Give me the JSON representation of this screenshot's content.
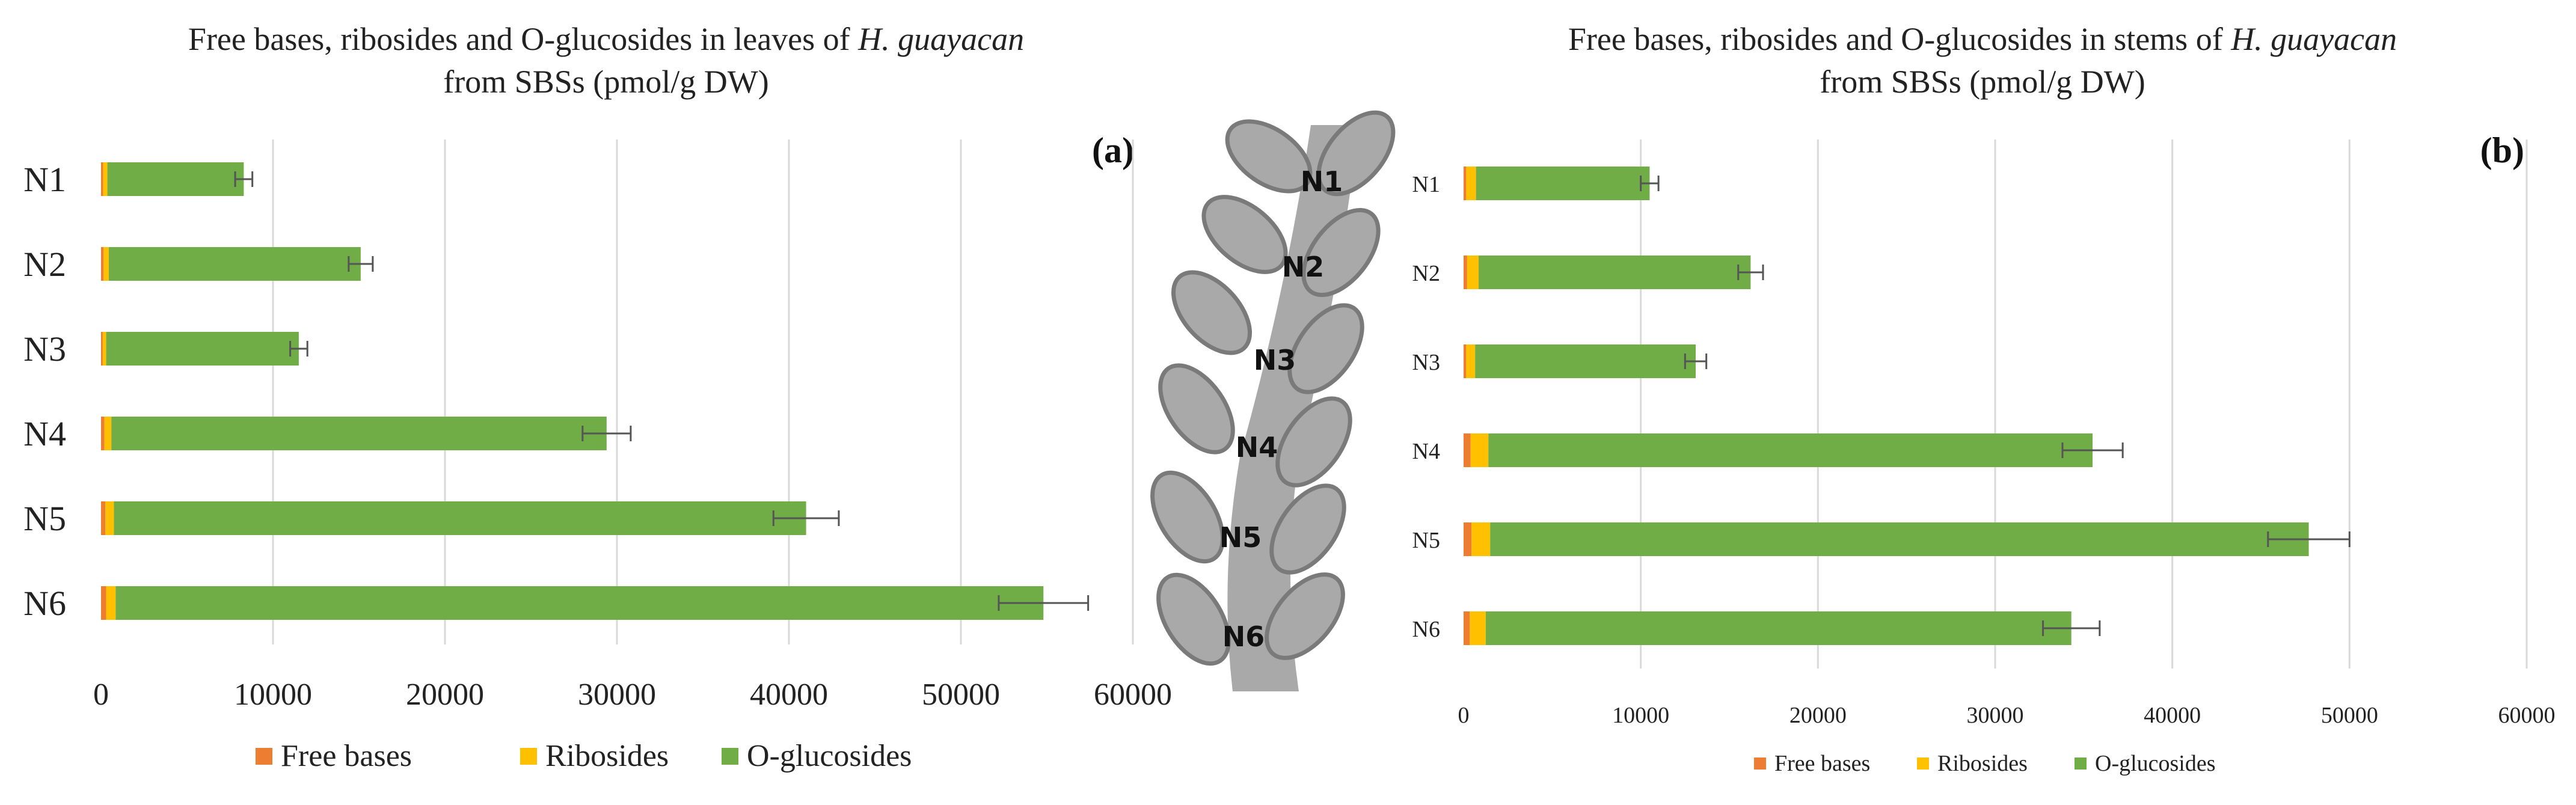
{
  "colors": {
    "free_bases": "#ED7D31",
    "ribosides": "#FFC000",
    "o_glucosides": "#70AD47",
    "error_bar": "#555555"
  },
  "chart_data": [
    {
      "id": "leaves",
      "type": "bar",
      "orientation": "horizontal",
      "stacked": true,
      "title": "Free bases, ribosides and O-glucosides in leaves of ",
      "title_italic": "H. guayacan",
      "title_line2": "from SBSs (pmol/g DW)",
      "panel_label": "(a)",
      "categories": [
        "N1",
        "N2",
        "N3",
        "N4",
        "N5",
        "N6"
      ],
      "series": [
        {
          "name": "Free bases",
          "values": [
            120,
            150,
            100,
            200,
            250,
            300
          ]
        },
        {
          "name": "Ribosides",
          "values": [
            250,
            300,
            200,
            400,
            500,
            550
          ]
        },
        {
          "name": "O-glucosides",
          "values": [
            7930,
            14650,
            11200,
            28800,
            40250,
            53950
          ]
        }
      ],
      "errors": [
        500,
        700,
        500,
        1400,
        1900,
        2600
      ],
      "xlim": [
        0,
        60000
      ],
      "xticks": [
        "0",
        "10000",
        "20000",
        "30000",
        "40000",
        "50000",
        "60000"
      ],
      "legend": [
        "Free bases",
        "Ribosides",
        "O-glucosides"
      ],
      "legend_position": "bottom",
      "grid": true
    },
    {
      "id": "stems",
      "type": "bar",
      "orientation": "horizontal",
      "stacked": true,
      "title": "Free bases, ribosides and O-glucosides in stems of ",
      "title_italic": "H. guayacan",
      "title_line2": "from SBSs (pmol/g DW)",
      "panel_label": "(b)",
      "categories": [
        "N1",
        "N2",
        "N3",
        "N4",
        "N5",
        "N6"
      ],
      "series": [
        {
          "name": "Free bases",
          "values": [
            150,
            200,
            150,
            400,
            450,
            350
          ]
        },
        {
          "name": "Ribosides",
          "values": [
            550,
            650,
            500,
            1000,
            1050,
            900
          ]
        },
        {
          "name": "O-glucosides",
          "values": [
            9800,
            15350,
            12450,
            34100,
            46200,
            33050
          ]
        }
      ],
      "errors": [
        500,
        700,
        600,
        1700,
        2300,
        1600
      ],
      "xlim": [
        0,
        60000
      ],
      "xticks": [
        "0",
        "10000",
        "20000",
        "30000",
        "40000",
        "50000",
        "60000"
      ],
      "legend": [
        "Free bases",
        "Ribosides",
        "O-glucosides"
      ],
      "legend_position": "bottom",
      "grid": true
    }
  ],
  "plant_diagram": {
    "node_labels": [
      "N1",
      "N2",
      "N3",
      "N4",
      "N5",
      "N6"
    ]
  }
}
